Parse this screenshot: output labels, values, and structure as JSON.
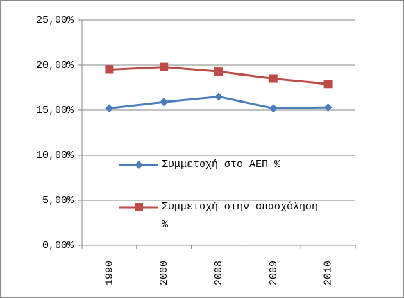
{
  "chart_data": {
    "type": "line",
    "categories": [
      "1990",
      "2000",
      "2008",
      "2009",
      "2010"
    ],
    "series": [
      {
        "name": "Συμμετοχή στο ΑΕΠ  %",
        "color": "#4a7ebb",
        "marker": "diamond",
        "values": [
          15.2,
          15.9,
          16.5,
          15.2,
          15.3
        ]
      },
      {
        "name": "Συμμετοχή στην απασχόληση  %",
        "color": "#be4b48",
        "marker": "square",
        "values": [
          19.5,
          19.8,
          19.3,
          18.5,
          17.9
        ]
      }
    ],
    "ylim": [
      0,
      25
    ],
    "yticks": [
      {
        "value": 0,
        "label": "0,00%"
      },
      {
        "value": 5,
        "label": "5,00%"
      },
      {
        "value": 10,
        "label": "10,00%"
      },
      {
        "value": 15,
        "label": "15,00%"
      },
      {
        "value": 20,
        "label": "20,00%"
      },
      {
        "value": 25,
        "label": "25,00%"
      }
    ],
    "grid": true,
    "legend": "center-right"
  }
}
